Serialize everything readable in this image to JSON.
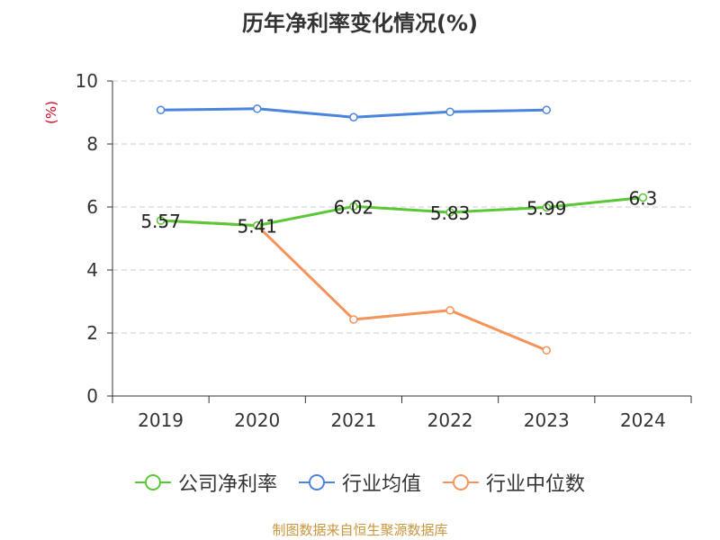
{
  "chart_data": {
    "type": "line",
    "title": "历年净利率变化情况(%)",
    "ylabel": "(%)",
    "xlabel": "",
    "categories": [
      "2019",
      "2020",
      "2021",
      "2022",
      "2023",
      "2024"
    ],
    "ylim": [
      0,
      10
    ],
    "yticks": [
      0,
      2,
      4,
      6,
      8,
      10
    ],
    "grid": true,
    "legend_position": "bottom",
    "series": [
      {
        "name": "公司净利率",
        "color": "#5ac736",
        "values": [
          5.57,
          5.41,
          6.02,
          5.83,
          5.99,
          6.3
        ],
        "labels": [
          "5.57",
          "5.41",
          "6.02",
          "5.83",
          "5.99",
          "6.3"
        ]
      },
      {
        "name": "行业均值",
        "color": "#4a84dc",
        "values": [
          9.08,
          9.12,
          8.85,
          9.02,
          9.08,
          null
        ]
      },
      {
        "name": "行业中位数",
        "color": "#f4935a",
        "values": [
          5.57,
          5.41,
          2.43,
          2.72,
          1.45,
          null
        ]
      }
    ]
  },
  "source": "制图数据来自恒生聚源数据库"
}
